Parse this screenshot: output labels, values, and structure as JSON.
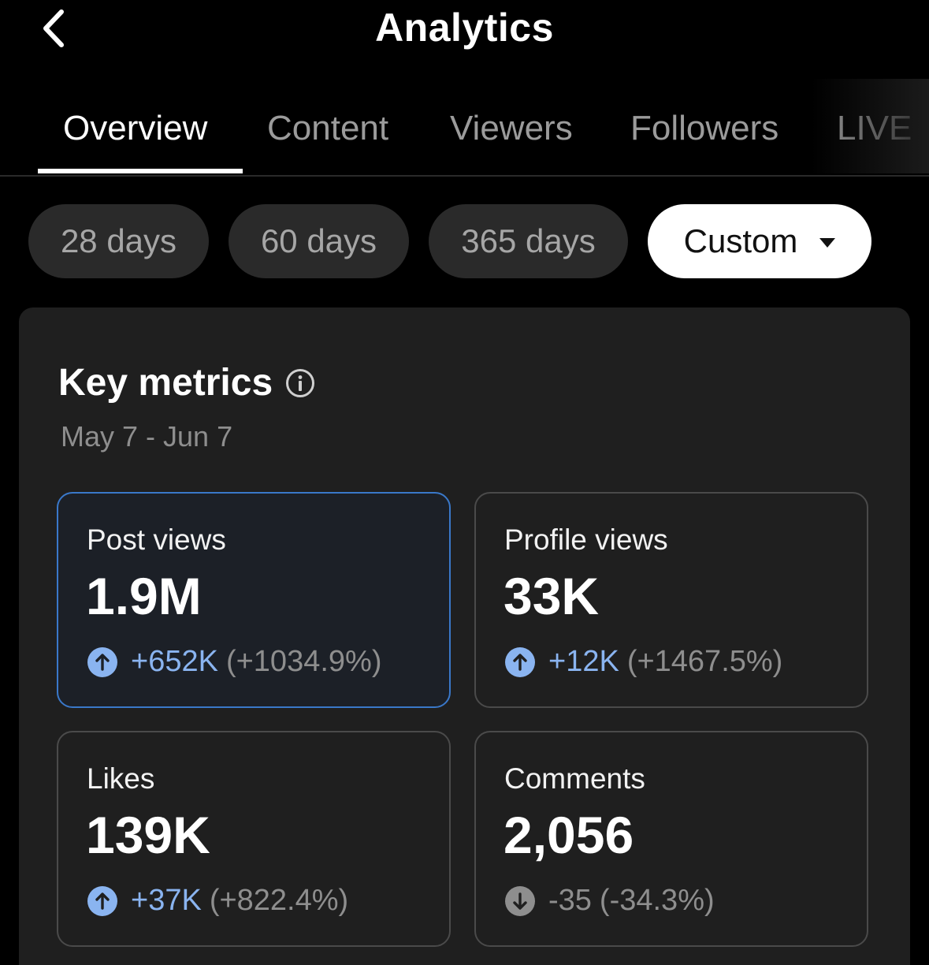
{
  "header": {
    "title": "Analytics"
  },
  "tabs": [
    {
      "label": "Overview",
      "active": true
    },
    {
      "label": "Content",
      "active": false
    },
    {
      "label": "Viewers",
      "active": false
    },
    {
      "label": "Followers",
      "active": false
    },
    {
      "label": "LIVE",
      "active": false
    }
  ],
  "filters": [
    {
      "label": "28 days",
      "selected": false
    },
    {
      "label": "60 days",
      "selected": false
    },
    {
      "label": "365 days",
      "selected": false
    },
    {
      "label": "Custom",
      "selected": true
    }
  ],
  "key_metrics": {
    "title": "Key metrics",
    "date_range": "May 7 - Jun 7",
    "cards": [
      {
        "label": "Post views",
        "value": "1.9M",
        "delta": "+652K",
        "percent": "(+1034.9%)",
        "direction": "up",
        "selected": true
      },
      {
        "label": "Profile views",
        "value": "33K",
        "delta": "+12K",
        "percent": "(+1467.5%)",
        "direction": "up",
        "selected": false
      },
      {
        "label": "Likes",
        "value": "139K",
        "delta": "+37K",
        "percent": "(+822.4%)",
        "direction": "up",
        "selected": false
      },
      {
        "label": "Comments",
        "value": "2,056",
        "delta": "-35",
        "percent": "(-34.3%)",
        "direction": "down",
        "selected": false
      }
    ]
  },
  "colors": {
    "background": "#000000",
    "panel": "#1f1f1f",
    "accent_blue": "#8ab4f0",
    "selected_border": "#3a78c9",
    "muted_text": "#8e8e8e"
  }
}
